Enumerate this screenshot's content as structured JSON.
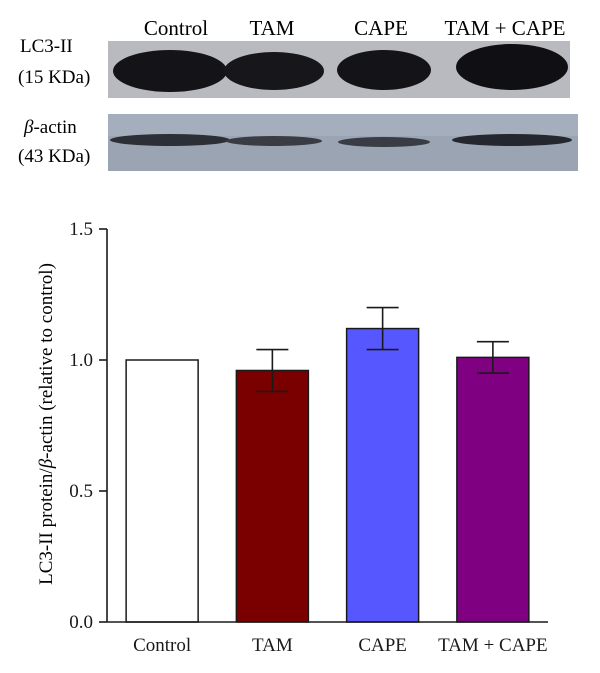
{
  "blot": {
    "lanes": [
      "Control",
      "TAM",
      "CAPE",
      "TAM + CAPE"
    ],
    "rows": [
      {
        "name": "LC3-II",
        "weight": "(15 KDa)"
      },
      {
        "name": "-actin",
        "greek": "β",
        "weight": "(43 KDa)"
      }
    ]
  },
  "chart_data": {
    "type": "bar",
    "categories": [
      "Control",
      "TAM",
      "CAPE",
      "TAM + CAPE"
    ],
    "values": [
      1.0,
      0.96,
      1.12,
      1.01
    ],
    "errors": [
      0,
      0.08,
      0.08,
      0.06
    ],
    "colors": [
      "#ffffff",
      "#7a0000",
      "#5757ff",
      "#7f0080"
    ],
    "ylabel": {
      "before": "LC3-II protein/",
      "greek": "β",
      "after": "-actin (relative to control)"
    },
    "ylim": [
      0,
      1.5
    ],
    "yticks": [
      0.0,
      0.5,
      1.0,
      1.5
    ],
    "ytick_labels": [
      "0.0",
      "0.5",
      "1.0",
      "1.5"
    ],
    "grid": false
  }
}
